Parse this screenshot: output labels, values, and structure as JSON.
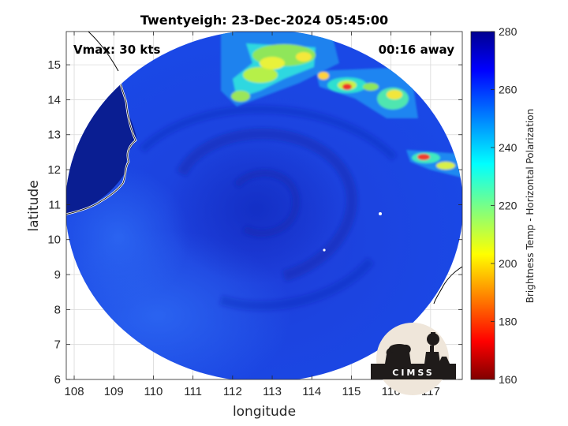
{
  "chart_data": {
    "type": "heatmap",
    "title": "Twentyeigh: 23-Dec-2024 05:45:00",
    "xlabel": "longitude",
    "ylabel": "latitude",
    "xlim": [
      107.8,
      117.8
    ],
    "ylim": [
      6.0,
      15.95
    ],
    "x_ticks": [
      108,
      109,
      110,
      111,
      112,
      113,
      114,
      115,
      116,
      117
    ],
    "y_ticks": [
      6,
      7,
      8,
      9,
      10,
      11,
      12,
      13,
      14,
      15
    ],
    "grid": true,
    "colorbar": {
      "label": "Brightness Temp - Horizontal Polarization",
      "range": [
        160,
        280
      ],
      "ticks": [
        160,
        180,
        200,
        220,
        240,
        260,
        280
      ],
      "colormap": "jet"
    },
    "annotations": {
      "vmax": "Vmax: 30 kts",
      "time_offset": "00:16 away"
    },
    "swath_center": [
      112.8,
      10.95
    ],
    "storm_center": [
      112.6,
      10.9
    ],
    "background_temp": 268,
    "field_features": [
      {
        "region": "core",
        "lon": 112.6,
        "lat": 10.9,
        "temp": 262
      },
      {
        "region": "southwest-lighter",
        "lon": 110.5,
        "lat": 8.0,
        "temp": 250
      },
      {
        "region": "convection-north",
        "lon": 113.5,
        "lat": 14.7,
        "temp": 215
      },
      {
        "region": "convection-northeast",
        "lon": 115.0,
        "lat": 14.4,
        "temp": 190
      },
      {
        "region": "convection-east",
        "lon": 116.4,
        "lat": 12.4,
        "temp": 195
      }
    ]
  },
  "logo": {
    "text": "CIMSS"
  },
  "colors": {
    "coastline": "#ffffff",
    "land_outline": "#000000",
    "grid": "#d9d9d9",
    "axis": "#262626"
  }
}
